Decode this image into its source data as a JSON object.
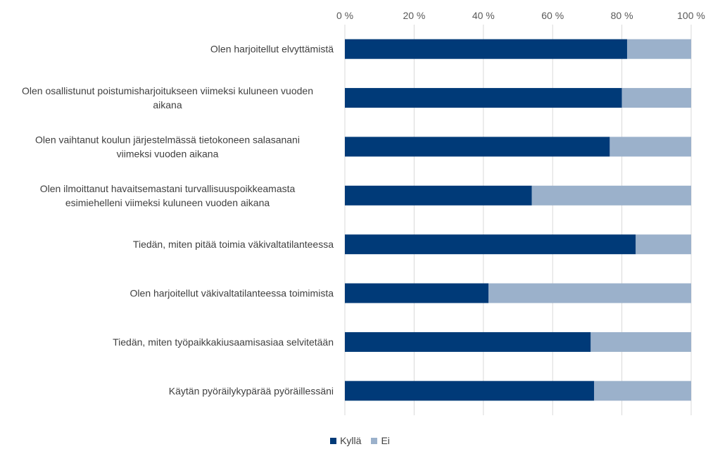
{
  "chart_data": {
    "type": "bar",
    "orientation": "horizontal",
    "stacked": "percent",
    "categories": [
      [
        "Olen harjoitellut elvyttämistä"
      ],
      [
        "Olen osallistunut poistumisharjoitukseen viimeksi kuluneen vuoden",
        "aikana"
      ],
      [
        "Olen vaihtanut koulun järjestelmässä tietokoneen salasanani",
        "viimeksi vuoden aikana"
      ],
      [
        "Olen ilmoittanut havaitsemastani turvallisuuspoikkeamasta",
        "esimiehelleni viimeksi kuluneen vuoden aikana"
      ],
      [
        "Tiedän, miten pitää toimia väkivaltatilanteessa"
      ],
      [
        "Olen harjoitellut väkivaltatilanteessa toimimista"
      ],
      [
        "Tiedän, miten työpaikkakiusaamisasiaa selvitetään"
      ],
      [
        "Käytän pyöräilykypärää pyöräillessäni"
      ]
    ],
    "series": [
      {
        "name": "Kyllä",
        "color": "#003a78",
        "values": [
          81.5,
          80,
          76.5,
          54,
          84,
          41.5,
          71,
          72
        ]
      },
      {
        "name": "Ei",
        "color": "#9bb1cb",
        "values": [
          18.5,
          20,
          23.5,
          46,
          16,
          58.5,
          29,
          28
        ]
      }
    ],
    "xlim": [
      0,
      100
    ],
    "x_ticks": [
      "0 %",
      "20 %",
      "40 %",
      "60 %",
      "80 %",
      "100 %"
    ],
    "x_axis_position": "top",
    "grid": true,
    "legend": "bottom"
  }
}
